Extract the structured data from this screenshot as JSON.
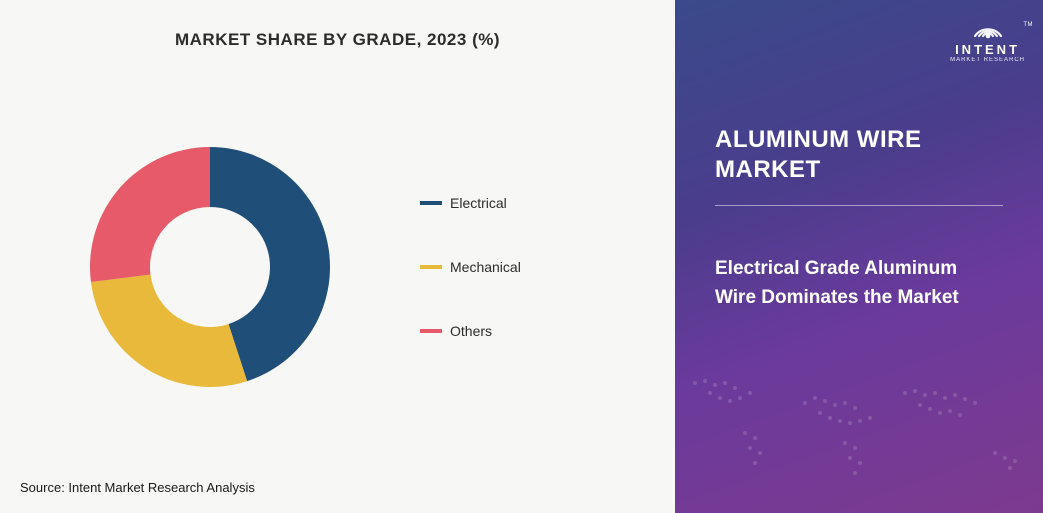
{
  "chart": {
    "type": "donut",
    "title": "MARKET SHARE BY GRADE, 2023 (%)",
    "title_fontsize": 17,
    "title_color": "#2c2c2c",
    "background_color": "#f7f7f5",
    "inner_radius": 60,
    "outer_radius": 120,
    "start_angle_deg": -90,
    "slices": [
      {
        "label": "Electrical",
        "value": 45,
        "color": "#1f4e79"
      },
      {
        "label": "Mechanical",
        "value": 28,
        "color": "#e8b93a"
      },
      {
        "label": "Others",
        "value": 27,
        "color": "#e65a6a"
      }
    ],
    "legend_fontsize": 14,
    "legend_text_color": "#2c2c2c",
    "legend_swatch_w": 22,
    "legend_swatch_h": 4,
    "source": "Source: Intent Market Research Analysis",
    "source_fontsize": 13
  },
  "sidebar": {
    "background_gradient": [
      "#3a4a8a",
      "#4b3d8c",
      "#6a3a9c",
      "#7d3a8f"
    ],
    "logo_main": "INTENT",
    "logo_sub": "MARKET RESEARCH",
    "logo_tm": "TM",
    "title": "ALUMINUM WIRE MARKET",
    "title_fontsize": 24,
    "highlight": "Electrical Grade Aluminum Wire Dominates the Market",
    "highlight_fontsize": 19,
    "text_color": "#ffffff",
    "map_opacity": 0.15
  }
}
